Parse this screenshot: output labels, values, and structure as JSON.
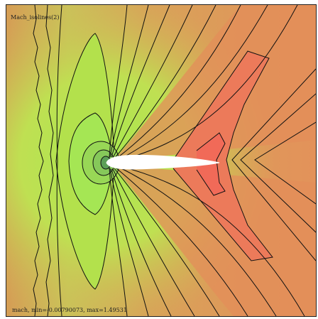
{
  "plot": {
    "title": "Mach_isolines(2)",
    "caption": "mach, min=-0.00790073, max=1.49531"
  },
  "colors": {
    "far_field": "#d9a155",
    "light_green": "#b5e24c",
    "mid_green": "#a8e653",
    "dark_green": "#7fbf5a",
    "wake_orange": "#e8875a",
    "wake_red": "#f0705a",
    "airfoil": "#ffffff",
    "isoline": "#111111"
  }
}
